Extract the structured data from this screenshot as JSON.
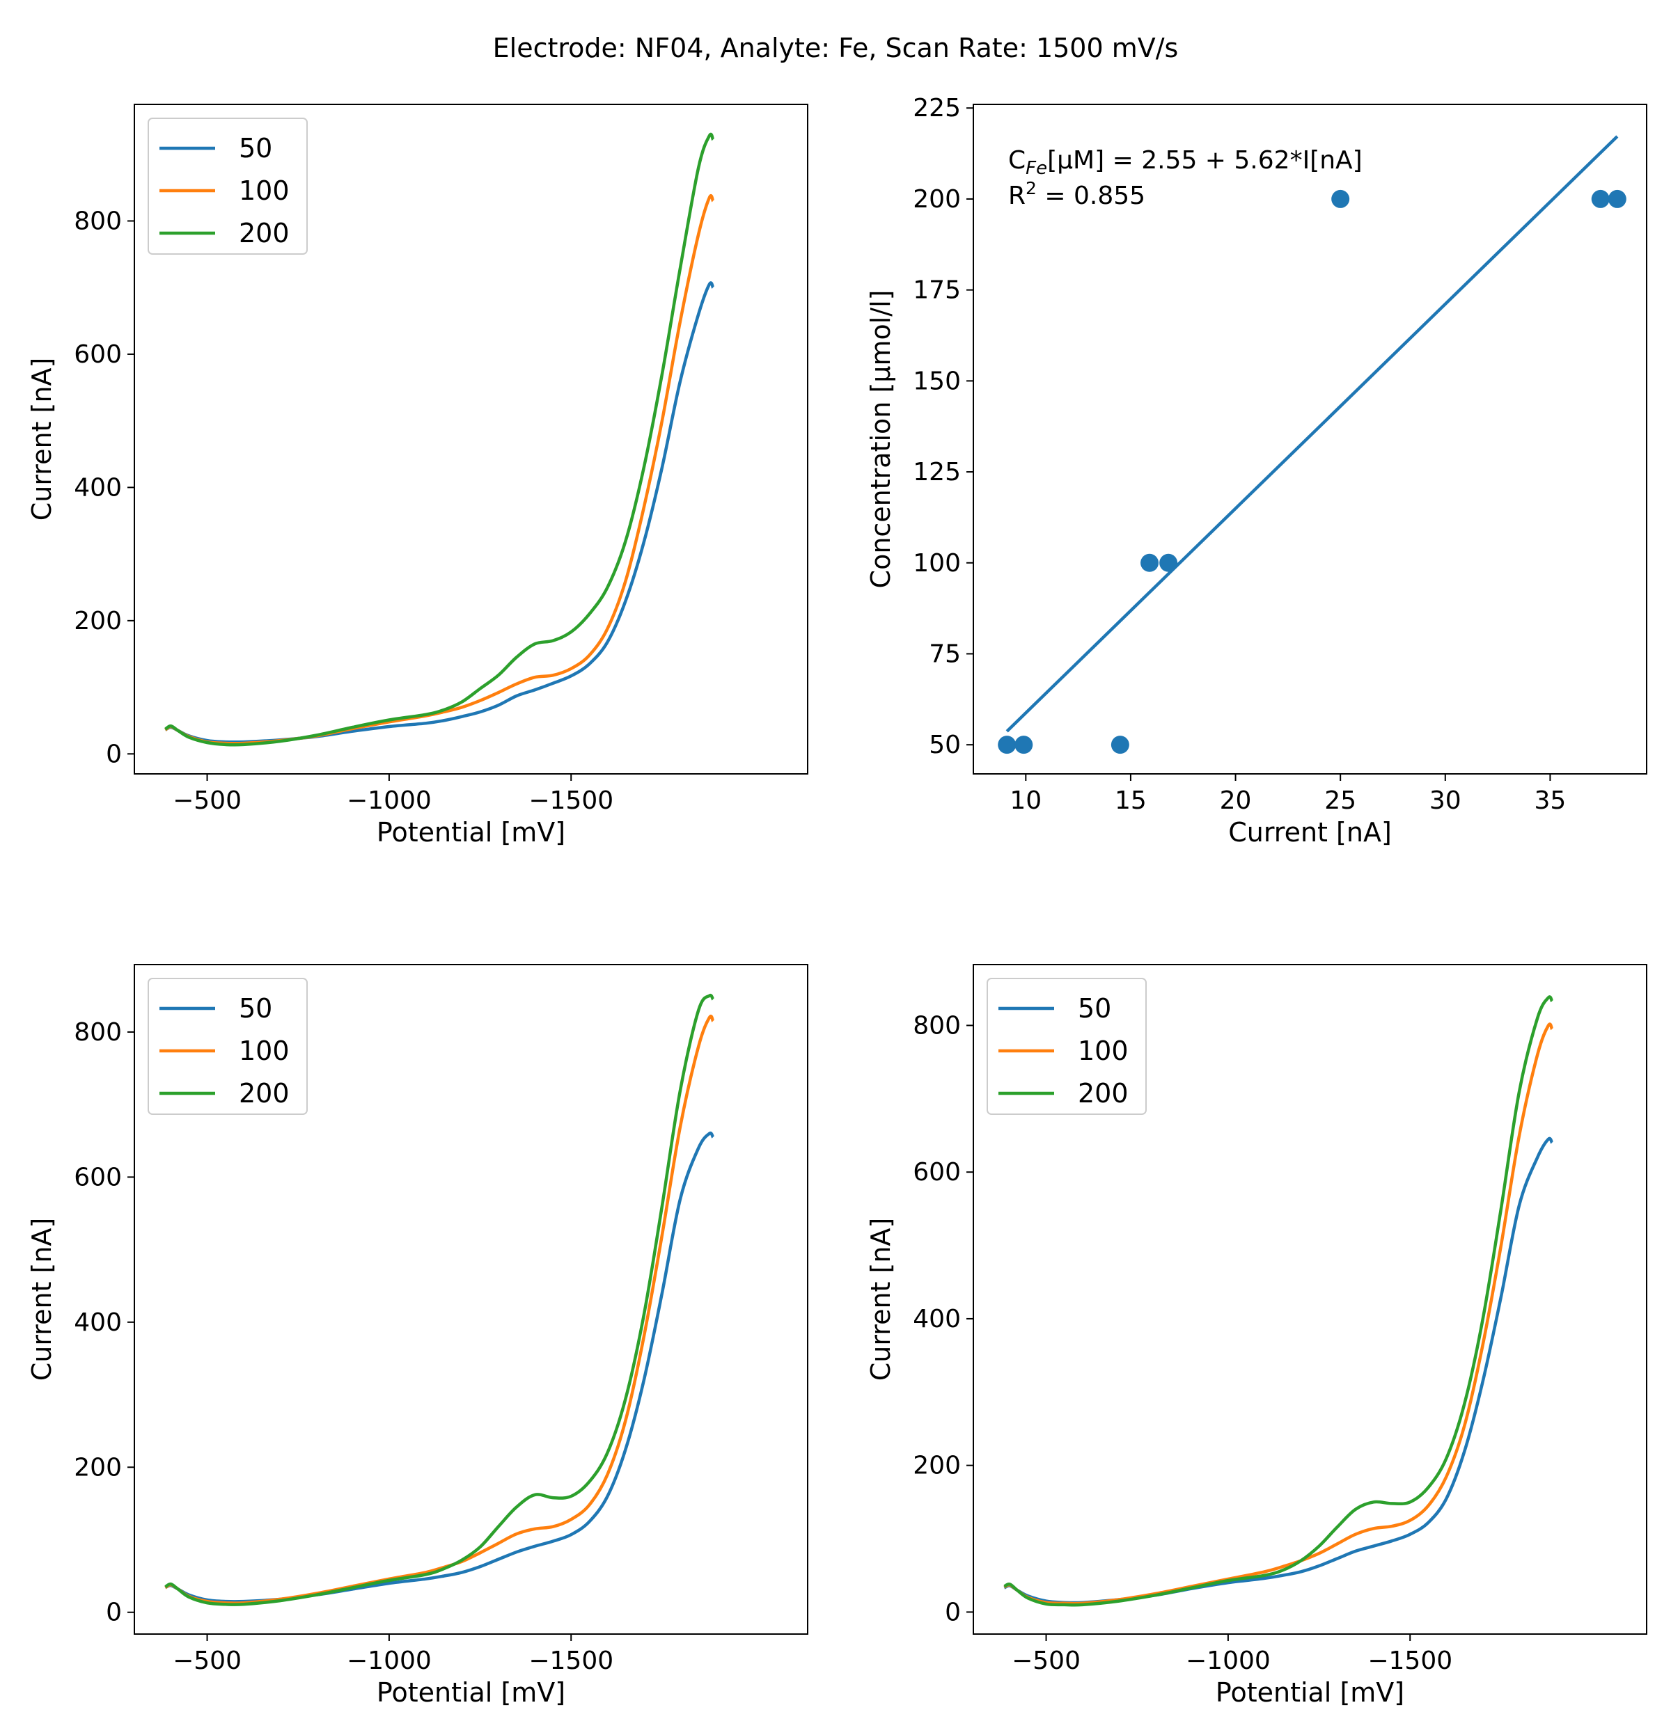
{
  "figure_title": "Electrode: NF04, Analyte: Fe, Scan Rate: 1500 mV/s",
  "colors": {
    "blue": "#1f77b4",
    "orange": "#ff7f0e",
    "green": "#2ca02c"
  },
  "chart_data": [
    {
      "id": "p1",
      "type": "line",
      "xlabel": "Potential [mV]",
      "ylabel": "Current [nA]",
      "xlim": [
        -300,
        -2150
      ],
      "ylim": [
        -30,
        975
      ],
      "xticks": [
        -500,
        -1000,
        -1500
      ],
      "xtick_labels": [
        "−500",
        "−1000",
        "−1500"
      ],
      "yticks": [
        0,
        200,
        400,
        600,
        800
      ],
      "ytick_labels": [
        "0",
        "200",
        "400",
        "600",
        "800"
      ],
      "legend": {
        "position": "upper-left",
        "entries": [
          "50",
          "100",
          "200"
        ]
      },
      "series": [
        {
          "name": "50",
          "color": "#1f77b4",
          "x": [
            -385,
            -400,
            -420,
            -450,
            -500,
            -550,
            -600,
            -700,
            -800,
            -900,
            -1000,
            -1100,
            -1150,
            -1200,
            -1250,
            -1300,
            -1350,
            -1400,
            -1450,
            -1500,
            -1550,
            -1600,
            -1650,
            -1700,
            -1750,
            -1800,
            -1850,
            -1880,
            -1890
          ],
          "y": [
            36,
            40,
            35,
            27,
            20,
            18,
            18,
            21,
            26,
            34,
            41,
            46,
            50,
            56,
            63,
            73,
            87,
            96,
            106,
            117,
            135,
            168,
            230,
            318,
            430,
            560,
            660,
            705,
            700
          ]
        },
        {
          "name": "100",
          "color": "#ff7f0e",
          "x": [
            -385,
            -400,
            -420,
            -450,
            -500,
            -550,
            -600,
            -700,
            -800,
            -900,
            -1000,
            -1100,
            -1150,
            -1200,
            -1250,
            -1300,
            -1350,
            -1400,
            -1450,
            -1500,
            -1550,
            -1600,
            -1650,
            -1700,
            -1750,
            -1800,
            -1850,
            -1880,
            -1890
          ],
          "y": [
            36,
            41,
            35,
            26,
            18,
            16,
            16,
            20,
            27,
            38,
            48,
            57,
            63,
            70,
            80,
            92,
            105,
            115,
            118,
            128,
            148,
            188,
            260,
            370,
            500,
            650,
            780,
            835,
            830
          ]
        },
        {
          "name": "200",
          "color": "#2ca02c",
          "x": [
            -385,
            -400,
            -420,
            -450,
            -500,
            -550,
            -600,
            -700,
            -800,
            -900,
            -1000,
            -1100,
            -1150,
            -1200,
            -1250,
            -1300,
            -1350,
            -1400,
            -1450,
            -1500,
            -1550,
            -1600,
            -1650,
            -1700,
            -1750,
            -1800,
            -1850,
            -1880,
            -1890
          ],
          "y": [
            37,
            42,
            35,
            25,
            17,
            14,
            14,
            19,
            28,
            40,
            51,
            59,
            66,
            78,
            98,
            118,
            145,
            165,
            170,
            183,
            210,
            250,
            320,
            430,
            570,
            730,
            880,
            928,
            922
          ]
        }
      ]
    },
    {
      "id": "p2",
      "type": "scatter",
      "xlabel": "Current [nA]",
      "ylabel": "Concentration [µmol/l]",
      "xlim": [
        7.5,
        39.6
      ],
      "ylim": [
        42,
        226
      ],
      "xticks": [
        10,
        15,
        20,
        25,
        30,
        35
      ],
      "xtick_labels": [
        "10",
        "15",
        "20",
        "25",
        "30",
        "35"
      ],
      "yticks": [
        50,
        75,
        100,
        125,
        150,
        175,
        200,
        225
      ],
      "ytick_labels": [
        "50",
        "75",
        "100",
        "125",
        "150",
        "175",
        "200",
        "225"
      ],
      "points": {
        "color": "#1f77b4",
        "x": [
          9.1,
          9.9,
          14.5,
          15.9,
          16.8,
          25.0,
          37.4,
          38.2
        ],
        "y": [
          50,
          50,
          50,
          100,
          100,
          200,
          200,
          200
        ]
      },
      "fit": {
        "color": "#1f77b4",
        "x": [
          9.1,
          38.2
        ],
        "y": [
          53.7,
          217.2
        ]
      },
      "annotation": {
        "c_main": "C",
        "c_sub": "Fe",
        "c_rest": "[µM] = 2.55 + 5.62*I[nA]",
        "r_main": "R",
        "r_sup": "2",
        "r_rest": " = 0.855"
      }
    },
    {
      "id": "p3",
      "type": "line",
      "xlabel": "Potential [mV]",
      "ylabel": "Current [nA]",
      "xlim": [
        -300,
        -2150
      ],
      "ylim": [
        -30,
        893
      ],
      "xticks": [
        -500,
        -1000,
        -1500
      ],
      "xtick_labels": [
        "−500",
        "−1000",
        "−1500"
      ],
      "yticks": [
        0,
        200,
        400,
        600,
        800
      ],
      "ytick_labels": [
        "0",
        "200",
        "400",
        "600",
        "800"
      ],
      "legend": {
        "position": "upper-left",
        "entries": [
          "50",
          "100",
          "200"
        ]
      },
      "series": [
        {
          "name": "50",
          "color": "#1f77b4",
          "x": [
            -385,
            -400,
            -420,
            -450,
            -500,
            -550,
            -600,
            -700,
            -800,
            -900,
            -1000,
            -1100,
            -1150,
            -1200,
            -1250,
            -1300,
            -1350,
            -1400,
            -1450,
            -1500,
            -1550,
            -1600,
            -1650,
            -1700,
            -1750,
            -1800,
            -1850,
            -1880,
            -1890
          ],
          "y": [
            34,
            37,
            32,
            24,
            17,
            15,
            15,
            18,
            24,
            32,
            40,
            46,
            50,
            55,
            63,
            73,
            83,
            91,
            98,
            107,
            125,
            160,
            225,
            320,
            440,
            570,
            640,
            660,
            655
          ]
        },
        {
          "name": "100",
          "color": "#ff7f0e",
          "x": [
            -385,
            -400,
            -420,
            -450,
            -500,
            -550,
            -600,
            -700,
            -800,
            -900,
            -1000,
            -1100,
            -1150,
            -1200,
            -1250,
            -1300,
            -1350,
            -1400,
            -1450,
            -1500,
            -1550,
            -1600,
            -1650,
            -1700,
            -1750,
            -1800,
            -1850,
            -1880,
            -1890
          ],
          "y": [
            34,
            38,
            32,
            22,
            15,
            13,
            13,
            18,
            26,
            36,
            46,
            55,
            62,
            70,
            82,
            95,
            108,
            115,
            118,
            128,
            148,
            190,
            265,
            380,
            520,
            670,
            780,
            820,
            815
          ]
        },
        {
          "name": "200",
          "color": "#2ca02c",
          "x": [
            -385,
            -400,
            -420,
            -450,
            -500,
            -550,
            -600,
            -700,
            -800,
            -900,
            -1000,
            -1100,
            -1150,
            -1200,
            -1250,
            -1300,
            -1350,
            -1400,
            -1450,
            -1500,
            -1550,
            -1600,
            -1650,
            -1700,
            -1750,
            -1800,
            -1850,
            -1880,
            -1890
          ],
          "y": [
            35,
            39,
            32,
            21,
            13,
            11,
            11,
            16,
            24,
            34,
            44,
            52,
            60,
            72,
            90,
            118,
            145,
            162,
            158,
            160,
            180,
            220,
            295,
            410,
            560,
            720,
            830,
            850,
            845
          ]
        }
      ]
    },
    {
      "id": "p4",
      "type": "line",
      "xlabel": "Potential [mV]",
      "ylabel": "Current [nA]",
      "xlim": [
        -300,
        -2150
      ],
      "ylim": [
        -30,
        883
      ],
      "xticks": [
        -500,
        -1000,
        -1500
      ],
      "xtick_labels": [
        "−500",
        "−1000",
        "−1500"
      ],
      "yticks": [
        0,
        200,
        400,
        600,
        800
      ],
      "ytick_labels": [
        "0",
        "200",
        "400",
        "600",
        "800"
      ],
      "legend": {
        "position": "upper-left",
        "entries": [
          "50",
          "100",
          "200"
        ]
      },
      "series": [
        {
          "name": "50",
          "color": "#1f77b4",
          "x": [
            -385,
            -400,
            -420,
            -450,
            -500,
            -550,
            -600,
            -700,
            -800,
            -900,
            -1000,
            -1100,
            -1150,
            -1200,
            -1250,
            -1300,
            -1350,
            -1400,
            -1450,
            -1500,
            -1550,
            -1600,
            -1650,
            -1700,
            -1750,
            -1800,
            -1850,
            -1880,
            -1890
          ],
          "y": [
            33,
            36,
            30,
            22,
            15,
            13,
            13,
            17,
            23,
            32,
            40,
            46,
            50,
            55,
            63,
            73,
            83,
            90,
            97,
            106,
            122,
            155,
            220,
            315,
            430,
            555,
            620,
            645,
            640
          ]
        },
        {
          "name": "100",
          "color": "#ff7f0e",
          "x": [
            -385,
            -400,
            -420,
            -450,
            -500,
            -550,
            -600,
            -700,
            -800,
            -900,
            -1000,
            -1100,
            -1150,
            -1200,
            -1250,
            -1300,
            -1350,
            -1400,
            -1450,
            -1500,
            -1550,
            -1600,
            -1650,
            -1700,
            -1750,
            -1800,
            -1850,
            -1880,
            -1890
          ],
          "y": [
            34,
            37,
            30,
            20,
            13,
            12,
            12,
            17,
            25,
            35,
            45,
            55,
            62,
            70,
            80,
            93,
            106,
            114,
            117,
            125,
            145,
            185,
            255,
            365,
            500,
            650,
            760,
            800,
            795
          ]
        },
        {
          "name": "200",
          "color": "#2ca02c",
          "x": [
            -385,
            -400,
            -420,
            -450,
            -500,
            -550,
            -600,
            -700,
            -800,
            -900,
            -1000,
            -1100,
            -1150,
            -1200,
            -1250,
            -1300,
            -1350,
            -1400,
            -1450,
            -1500,
            -1550,
            -1600,
            -1650,
            -1700,
            -1750,
            -1800,
            -1850,
            -1880,
            -1890
          ],
          "y": [
            35,
            38,
            30,
            19,
            11,
            10,
            10,
            15,
            23,
            33,
            43,
            50,
            57,
            70,
            90,
            116,
            140,
            150,
            148,
            150,
            170,
            210,
            285,
            400,
            550,
            710,
            810,
            838,
            833
          ]
        }
      ]
    }
  ]
}
